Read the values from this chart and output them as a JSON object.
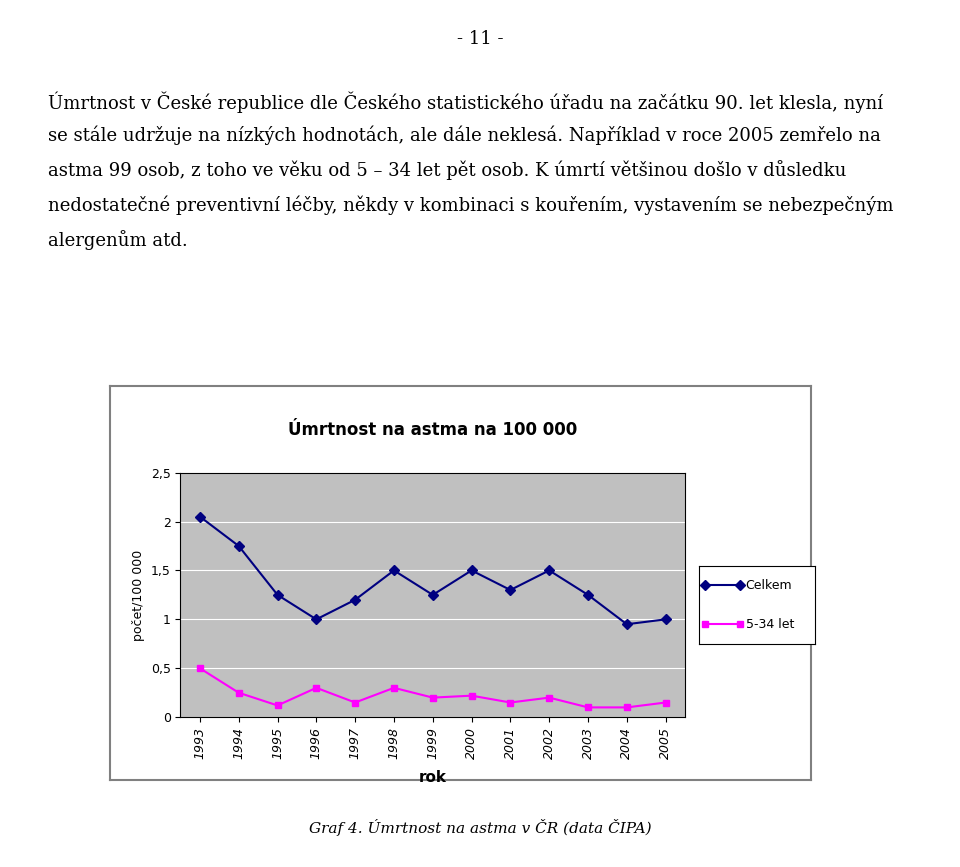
{
  "title": "Úmrtnost na astma na 100 000",
  "xlabel": "rok",
  "ylabel": "počet/100 000",
  "years": [
    1993,
    1994,
    1995,
    1996,
    1997,
    1998,
    1999,
    2000,
    2001,
    2002,
    2003,
    2004,
    2005
  ],
  "celkem": [
    2.05,
    1.75,
    1.25,
    1.0,
    1.2,
    1.5,
    1.25,
    1.5,
    1.3,
    1.5,
    1.25,
    0.95,
    1.0
  ],
  "let534": [
    0.5,
    0.25,
    0.12,
    0.3,
    0.15,
    0.3,
    0.2,
    0.22,
    0.15,
    0.2,
    0.1,
    0.1,
    0.15
  ],
  "celkem_color": "#000080",
  "let534_color": "#FF00FF",
  "plot_bg_color": "#C0C0C0",
  "outer_bg_color": "#FFFFFF",
  "chart_border_color": "#808080",
  "ylim": [
    0,
    2.5
  ],
  "yticks": [
    0,
    0.5,
    1.0,
    1.5,
    2.0,
    2.5
  ],
  "ytick_labels": [
    "0",
    "0,5",
    "1",
    "1,5",
    "2",
    "2,5"
  ],
  "legend_celkem": "Celkem",
  "legend_534": "5-34 let",
  "caption": "Graf 4. Úmrtnost na astma v ČR (data ČIPA)",
  "page_number": "- 11 -",
  "text_line1": "Úmrtnost v České republice dle Českého statistického úřadu na začátku 90. let klesla, nyní",
  "text_line2": "se stále udržuje na nízkých hodnotách, ale dále neklesá. Například v roce 2005 zemřelo na",
  "text_line3": "astma 99 osob, z toho ve věku od 5 – 34 let pět osob. K úmrtí většinou došlo v důsledku",
  "text_line4": "nedostatečné preventivní léčby, někdy v kombinaci s kouřením, vystavením se nebezpečným",
  "text_line5": "alergenům atd."
}
